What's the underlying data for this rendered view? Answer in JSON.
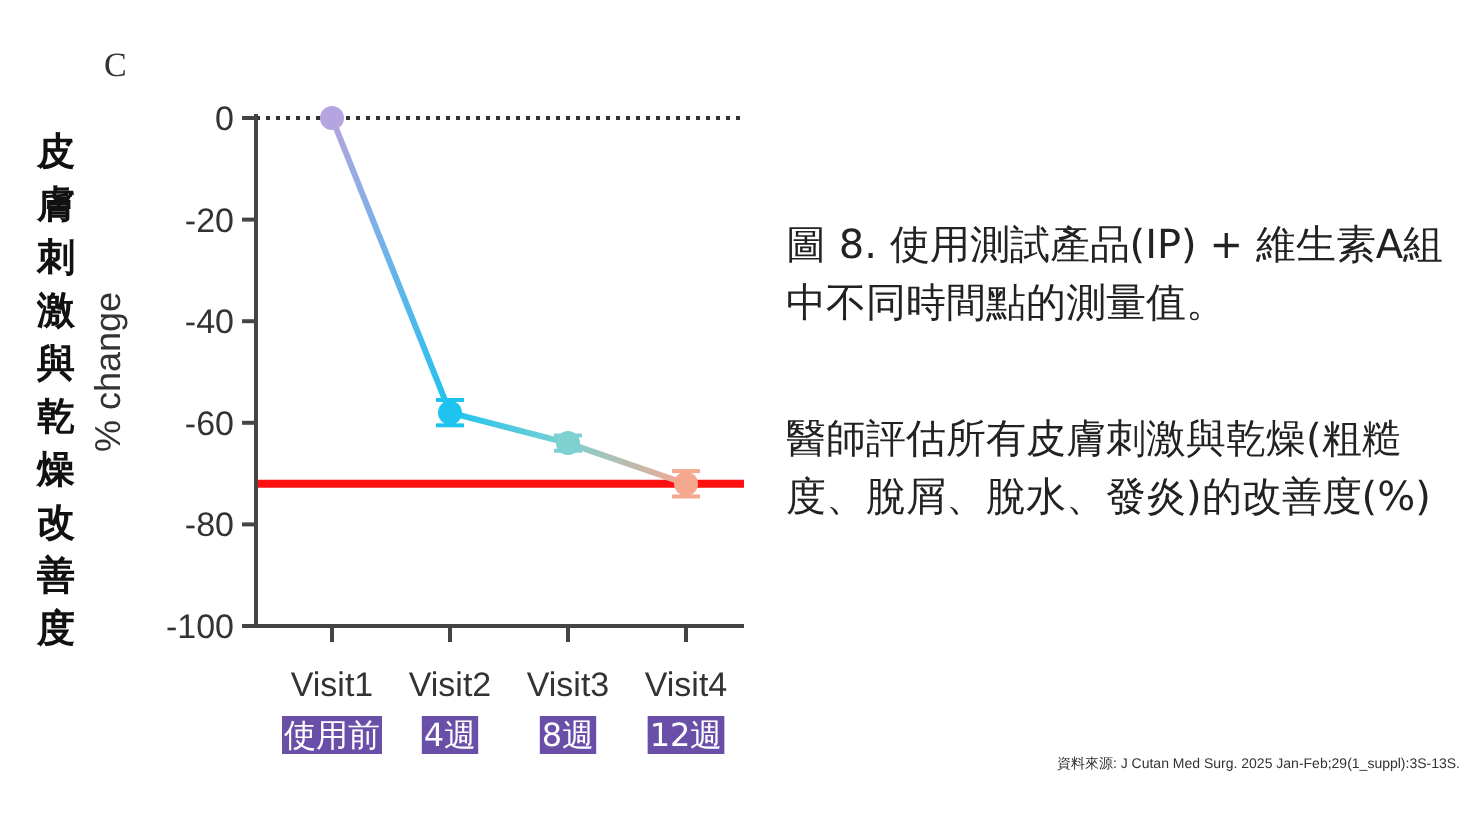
{
  "chart_data": {
    "type": "line",
    "ylabel": "% change",
    "categories": [
      "Visit1\n使用前",
      "Visit2\n4週",
      "Visit3\n8週",
      "Visit4\n12週"
    ],
    "series": [
      {
        "colors": [
          "#b4a5e0",
          "#1ec3f0",
          "#7fd0d0",
          "#f5a88e"
        ],
        "values": [
          0,
          -58,
          -64,
          -72
        ],
        "errors": [
          null,
          2.5,
          1.5,
          2.5
        ]
      }
    ],
    "ylim": [
      -100,
      0
    ],
    "yticks": [
      -100,
      -80,
      -60,
      -40,
      -20,
      0
    ],
    "marker": "circle",
    "line_style": "solid",
    "ref_lines": [
      {
        "axis": "y",
        "value": 0,
        "color": "#333333",
        "line_style": "dotted"
      },
      {
        "axis": "y",
        "value": -72,
        "color": "#ff1010",
        "line_style": "solid"
      }
    ],
    "annotations": [
      "C",
      "皮膚刺激與乾燥改善度",
      "圖 8. 使用測試產品(IP) + 維生素A組中不同時間點的測量值。",
      "醫師評估所有皮膚刺激與乾燥(粗糙度、脫屑、脫水、發炎)的改善度(%)",
      "資料來源: J Cutan Med Surg. 2025 Jan-Feb;29(1_suppl):3S-13S."
    ]
  }
}
